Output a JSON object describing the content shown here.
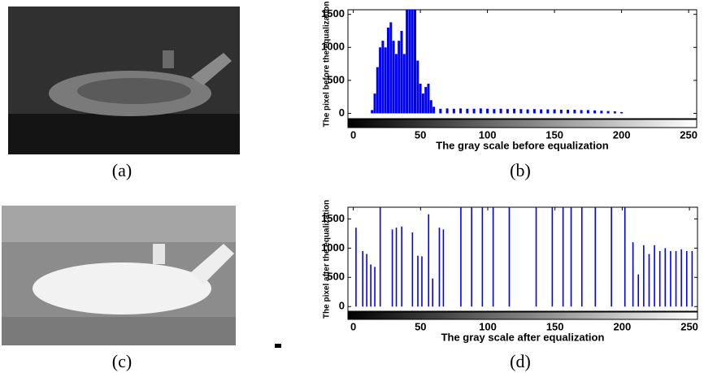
{
  "captions": [
    "(a)",
    "(b)",
    "(c)",
    "(d)"
  ],
  "chart_data": [
    {
      "type": "bar",
      "xlabel": "The gray scale before equalization",
      "ylabel": "The pixel before the equalization",
      "color": "#0000ff",
      "x": [
        14,
        16,
        18,
        20,
        22,
        24,
        26,
        28,
        30,
        32,
        34,
        36,
        38,
        40,
        42,
        44,
        46,
        48,
        50,
        52,
        54,
        56,
        58,
        60,
        65,
        70,
        75,
        80,
        85,
        90,
        95,
        100,
        105,
        110,
        115,
        120,
        125,
        130,
        135,
        140,
        145,
        150,
        155,
        160,
        165,
        170,
        175,
        180,
        185,
        190,
        195,
        200
      ],
      "values": [
        50,
        300,
        700,
        1000,
        1100,
        1000,
        1300,
        1380,
        1100,
        900,
        1100,
        1250,
        900,
        1570,
        1570,
        1570,
        1570,
        800,
        450,
        300,
        400,
        450,
        200,
        100,
        70,
        75,
        70,
        75,
        70,
        70,
        75,
        70,
        65,
        70,
        65,
        70,
        65,
        60,
        65,
        60,
        60,
        60,
        55,
        55,
        55,
        50,
        50,
        45,
        40,
        35,
        30,
        20
      ],
      "xlim": [
        -4,
        256
      ],
      "xticks": [
        0,
        50,
        100,
        150,
        200,
        250
      ],
      "ylim": [
        -80,
        1570
      ],
      "yticks": [
        0,
        500,
        1000,
        1500
      ]
    },
    {
      "type": "bar",
      "xlabel": "The gray scale after equalization",
      "ylabel": "The pixel after the equalization",
      "color": "#0000ff",
      "x": [
        2,
        7,
        10,
        13,
        16,
        20,
        29,
        32,
        36,
        44,
        48,
        51,
        56,
        59,
        64,
        67,
        80,
        88,
        96,
        104,
        116,
        136,
        148,
        156,
        162,
        170,
        180,
        192,
        202,
        208,
        212,
        216,
        220,
        224,
        228,
        232,
        236,
        240,
        244,
        248,
        252
      ],
      "values": [
        1350,
        950,
        900,
        720,
        680,
        1700,
        1320,
        1350,
        1370,
        1270,
        870,
        860,
        1580,
        480,
        1350,
        1320,
        1700,
        1700,
        1700,
        1700,
        1700,
        1700,
        1700,
        1700,
        1700,
        1700,
        1700,
        1700,
        1700,
        1100,
        550,
        1050,
        900,
        1050,
        950,
        1000,
        950,
        950,
        980,
        950,
        950
      ],
      "xlim": [
        -4,
        256
      ],
      "xticks": [
        0,
        50,
        100,
        150,
        200,
        250
      ],
      "ylim": [
        -80,
        1700
      ],
      "yticks": [
        0,
        500,
        1000,
        1500
      ]
    }
  ]
}
